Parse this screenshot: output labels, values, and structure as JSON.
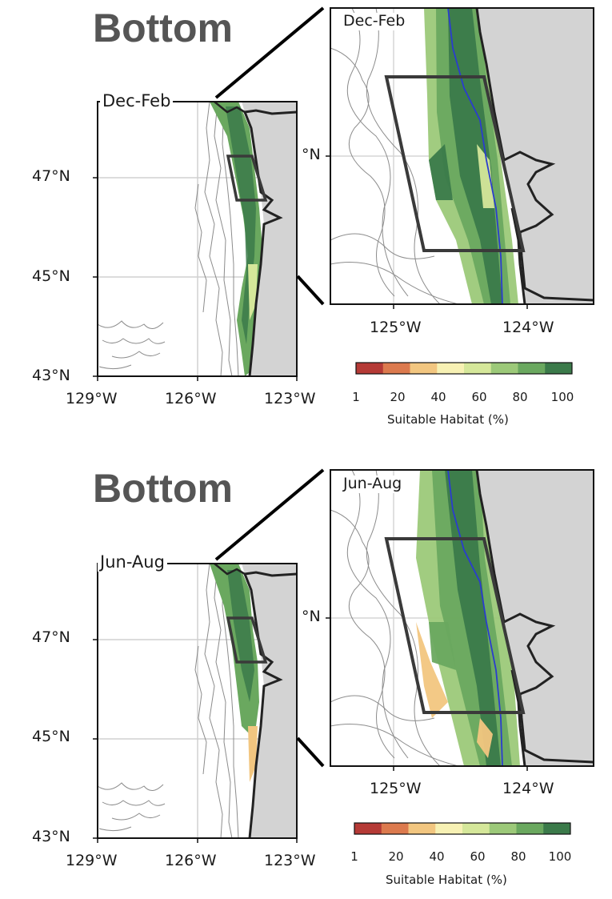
{
  "panels": [
    {
      "id": "winter",
      "title": "Bottom",
      "season": "Dec-Feb",
      "overview": {
        "lat_ticks": [
          "47°N",
          "45°N",
          "43°N"
        ],
        "lon_ticks": [
          "129°W",
          "126°W",
          "123°W"
        ]
      },
      "inset": {
        "lat_label": "°N",
        "lon_ticks": [
          "125°W",
          "124°W"
        ]
      }
    },
    {
      "id": "summer",
      "title": "Bottom",
      "season": "Jun-Aug",
      "overview": {
        "lat_ticks": [
          "47°N",
          "45°N",
          "43°N"
        ],
        "lon_ticks": [
          "129°W",
          "126°W",
          "123°W"
        ]
      },
      "inset": {
        "lat_label": "°N",
        "lon_ticks": [
          "125°W",
          "124°W"
        ]
      }
    }
  ],
  "colorbar": {
    "label": "Suitable Habitat (%)",
    "ticks": [
      "1",
      "20",
      "40",
      "60",
      "80",
      "100"
    ],
    "colors": [
      "#b53a36",
      "#dc7a4e",
      "#f2c680",
      "#f7f1b4",
      "#d5e79a",
      "#9cc979",
      "#6aa85f",
      "#3b7a4a"
    ]
  },
  "colors": {
    "land": "#d3d3d3",
    "coast": "#222222",
    "isobath": "#8c8c8c",
    "river": "#2a3ccf",
    "box": "#3a3a3a"
  }
}
